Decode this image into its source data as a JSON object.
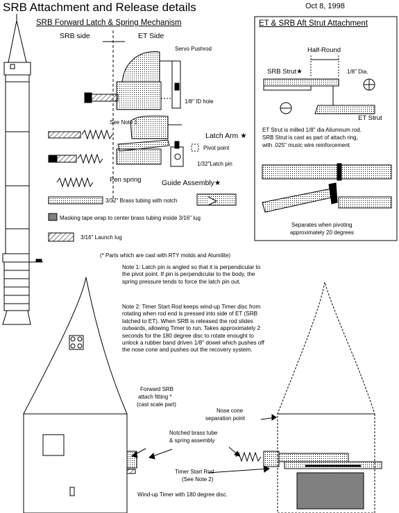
{
  "title": "SRB Attachment and Release details",
  "date": "Oct 8, 1998",
  "forward": {
    "heading": "SRB Forward Latch & Spring Mechanism",
    "srb_side": "SRB side",
    "et_side": "ET Side",
    "servo_pushrod": "Servo Pushrod",
    "id_hole": "1/8\" ID hole",
    "see_note1": "See Note 1",
    "latch_arm": "Latch Arm",
    "pivot_point": "Pivot point",
    "latch_pin": "1/32\"Latch pin",
    "pen_spring": "Pen spring",
    "guide_assembly": "Guide Assembly",
    "brass_tubing": "3/32\" Brass tubing with notch",
    "masking_tape": "Masking tape wrap to center brass tubing inside 3/16\" lug",
    "launch_lug": "3/16\" Launch lug",
    "cast_parts_note": "(* Parts which are cast with RTY molds and Alumilite)"
  },
  "aft": {
    "heading": "ET & SRB Aft Strut Attachment",
    "half_round": "Half-Round",
    "srb_strut": "SRB Strut",
    "dia": "1/8\" Dia.",
    "et_strut": "ET Strut",
    "desc1": "ET Strut is milled 1/8\" dia Aliumnum rod.",
    "desc2": "SRB Strut is cast as part of attach ring,",
    "desc3": "with .025\" music wire reinforcement",
    "separates1": "Separates when pivoting",
    "separates2": "approximately 20 degrees"
  },
  "notes": {
    "note1": "Note 1:  Latch pin is angled so that it is perpendicular to the pivot point. If pin is perpendicular to the body, the spring pressure tends to force the latch pin out.",
    "note2": "Note 2: Timer Start Rod keeps wind-up Timer disc from rotating when rod end is pressed into side of ET (SRB latched to ET). When SRB is released the rod slides outwards, allowing Timer to run. Takes approximately 2 seconds for the 180 degree disc to rotate enought to unlock a rubber band driven 1/8\" dowel which pushes off the nose cone and pushes out the recovery system."
  },
  "bottom": {
    "fwd_fitting1": "Forward SRB",
    "fwd_fitting2": "attach fitting",
    "fwd_fitting3": "(cast scale part)",
    "nose_sep1": "Nose cone",
    "nose_sep2": "separation point",
    "notched1": "Notched brass tube",
    "notched2": "& spring assembly",
    "timer_rod1": "Timer Start Rod",
    "timer_rod2": "(See Note 2)",
    "windup": "Wind-up Timer with 180 degree disc."
  }
}
